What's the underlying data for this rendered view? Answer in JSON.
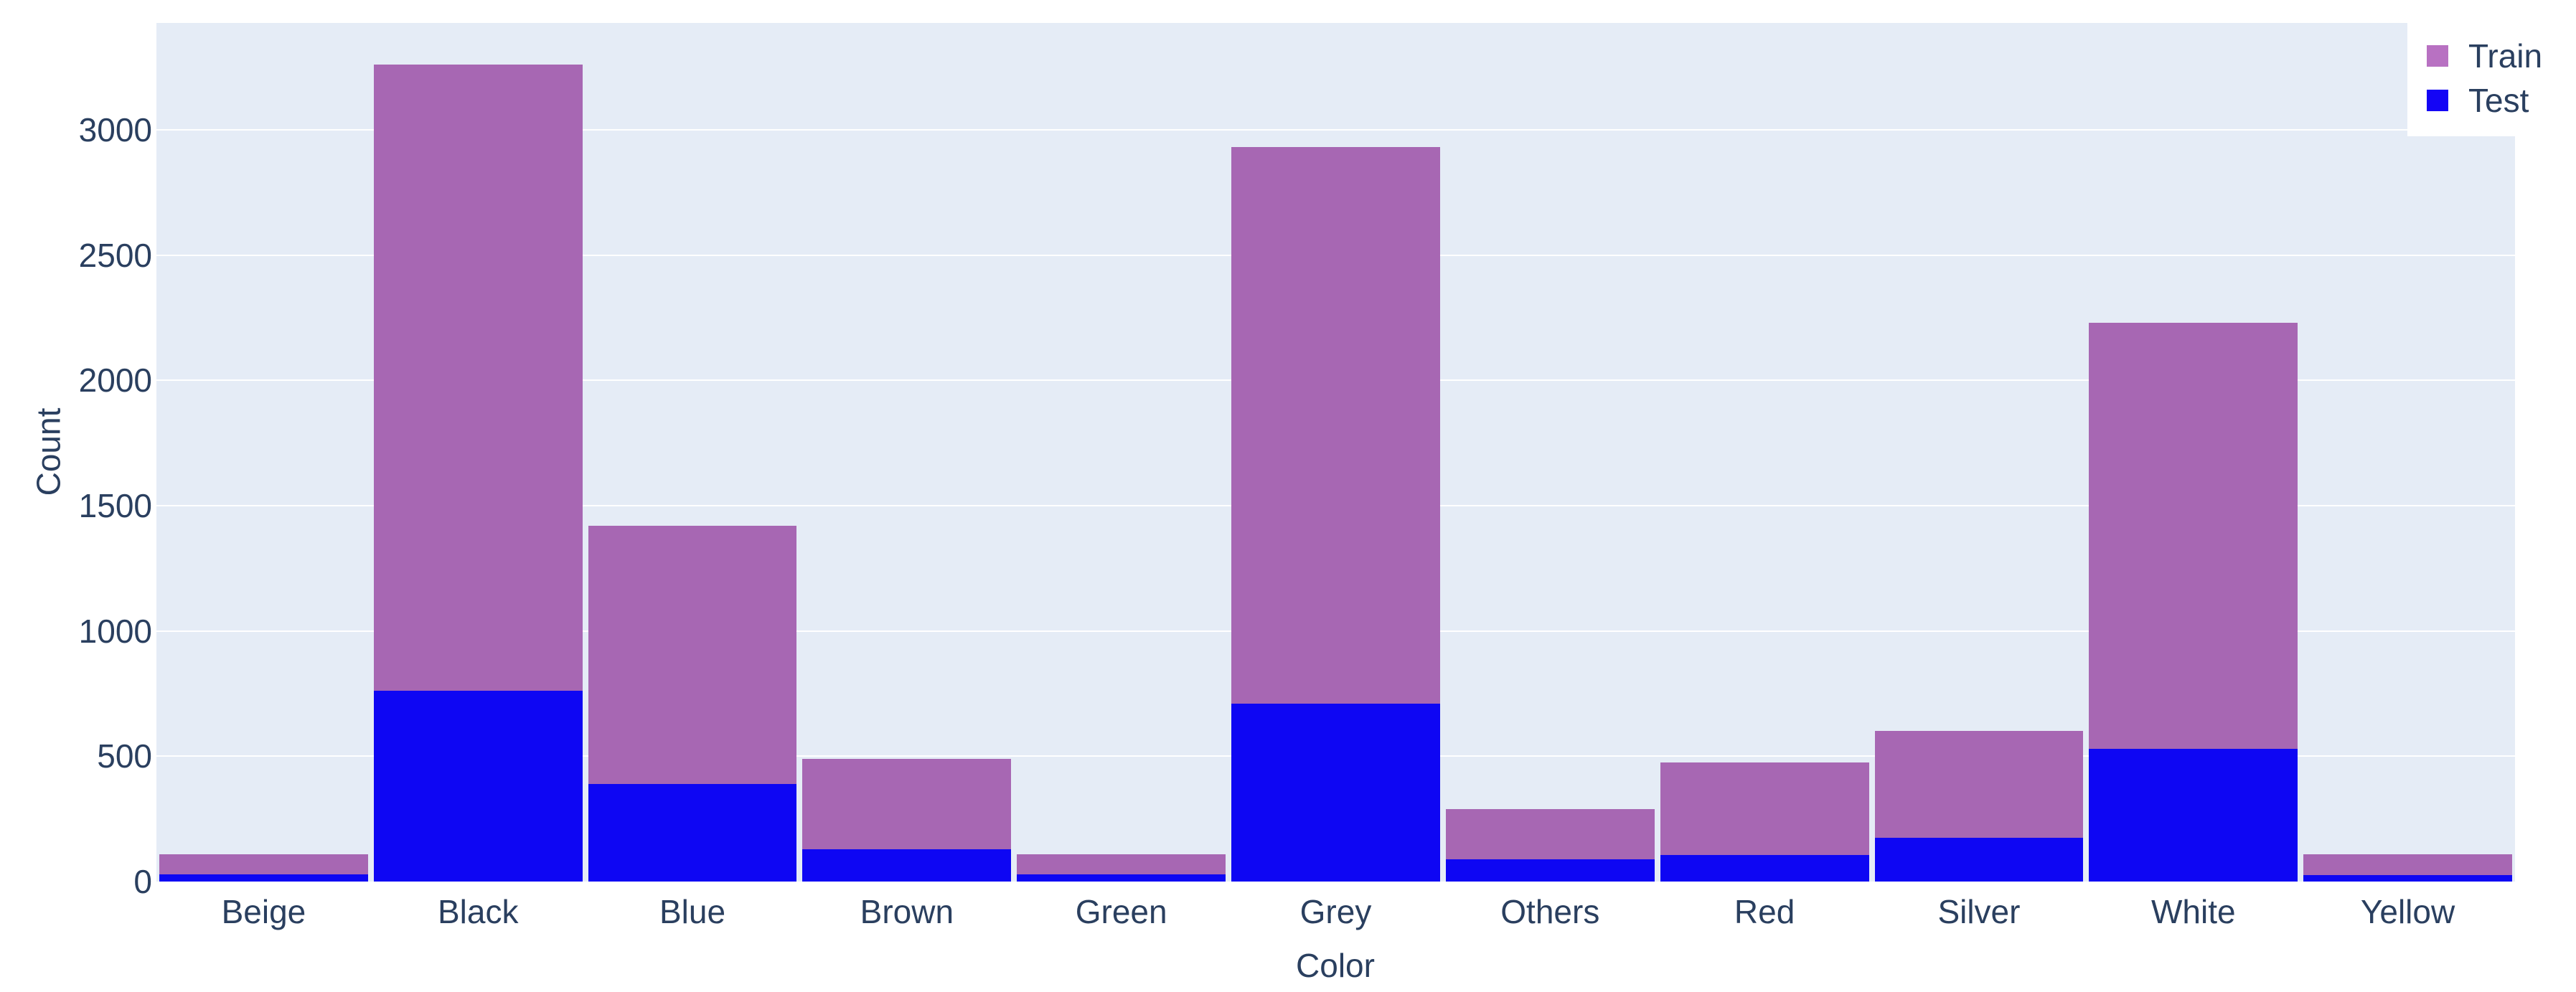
{
  "chart_data": {
    "type": "bar",
    "mode": "overlay-histogram",
    "title": "",
    "xlabel": "Color",
    "ylabel": "Count",
    "categories": [
      "Beige",
      "Black",
      "Blue",
      "Brown",
      "Green",
      "Grey",
      "Others",
      "Red",
      "Silver",
      "White",
      "Yellow"
    ],
    "series": [
      {
        "name": "Train",
        "color": "#a767b3",
        "legend_color": "#b871c2",
        "values": [
          110,
          3260,
          1420,
          490,
          110,
          2930,
          290,
          475,
          600,
          2230,
          110
        ]
      },
      {
        "name": "Test",
        "color": "#0e06f3",
        "legend_color": "#1405f5",
        "values": [
          30,
          760,
          390,
          130,
          30,
          710,
          90,
          105,
          175,
          530,
          25
        ]
      }
    ],
    "ylim": [
      0,
      3426
    ],
    "yticks": [
      0,
      500,
      1000,
      1500,
      2000,
      2500,
      3000
    ],
    "grid": true,
    "gridlines_at": [
      500,
      1000,
      1500,
      2000,
      2500,
      3000
    ],
    "legend_position": "top-right",
    "plot_bg": "#e5ecf6",
    "grid_color": "#ffffff",
    "text_color": "#2a3f5f"
  }
}
